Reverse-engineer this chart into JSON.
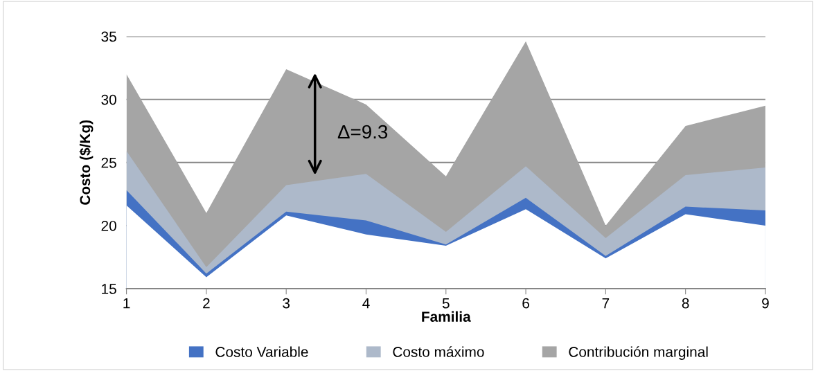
{
  "chart_data": {
    "type": "area",
    "xlabel": "Familia",
    "ylabel": "Costo ($/Kg)",
    "x": [
      1,
      2,
      3,
      4,
      5,
      6,
      7,
      8,
      9
    ],
    "xlim": [
      1,
      9
    ],
    "xticks": [
      1,
      2,
      3,
      4,
      5,
      6,
      7,
      8,
      9
    ],
    "ylim": [
      15,
      35
    ],
    "yticks": [
      15,
      20,
      25,
      30,
      35
    ],
    "grid": "y",
    "legend": "bottom",
    "series": [
      {
        "color": "#ffffff",
        "values": [
          21.6,
          15.9,
          20.8,
          19.3,
          18.4,
          21.3,
          17.4,
          20.9,
          20.0
        ]
      },
      {
        "name": "Costo Variable",
        "color": "#4472c4",
        "values": [
          22.8,
          16.2,
          21.1,
          20.4,
          18.5,
          22.2,
          17.6,
          21.5,
          21.2
        ]
      },
      {
        "name": "Costo máximo",
        "color": "#adb9ca",
        "values": [
          25.9,
          16.7,
          23.2,
          24.1,
          19.5,
          24.7,
          19.0,
          24.0,
          24.6
        ]
      },
      {
        "name": "Contribución marginal",
        "color": "#a5a5a5",
        "values": [
          32.0,
          21.0,
          32.4,
          29.6,
          23.9,
          34.6,
          20.0,
          27.9,
          29.5
        ]
      }
    ],
    "annotations": [
      "Δ=9.3"
    ]
  }
}
